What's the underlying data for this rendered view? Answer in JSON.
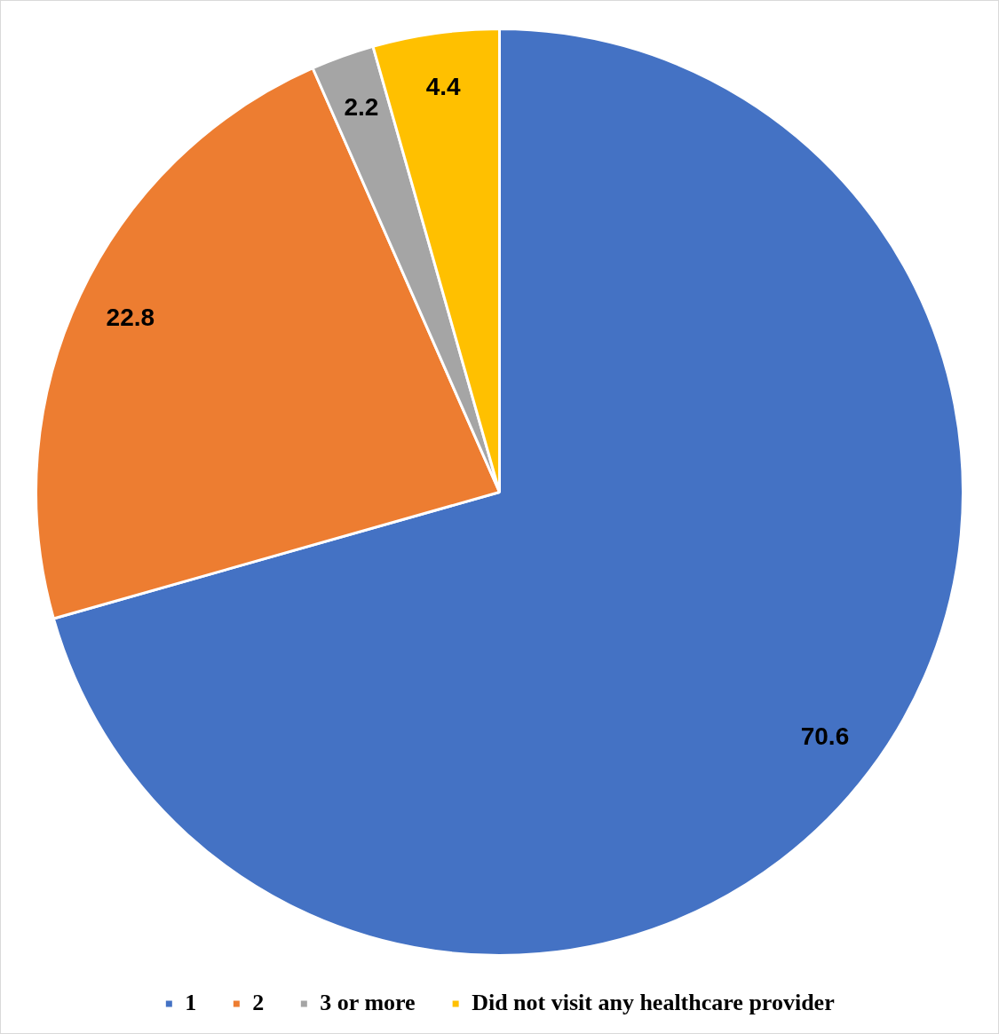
{
  "chart_data": {
    "type": "pie",
    "categories": [
      "1",
      "2",
      "3 or more",
      "Did not visit any healthcare provider"
    ],
    "values": [
      70.6,
      22.8,
      2.2,
      4.4
    ],
    "colors": [
      "#4472c4",
      "#ed7d31",
      "#a5a5a5",
      "#ffc000"
    ],
    "data_labels": true,
    "legend": "bottom"
  }
}
